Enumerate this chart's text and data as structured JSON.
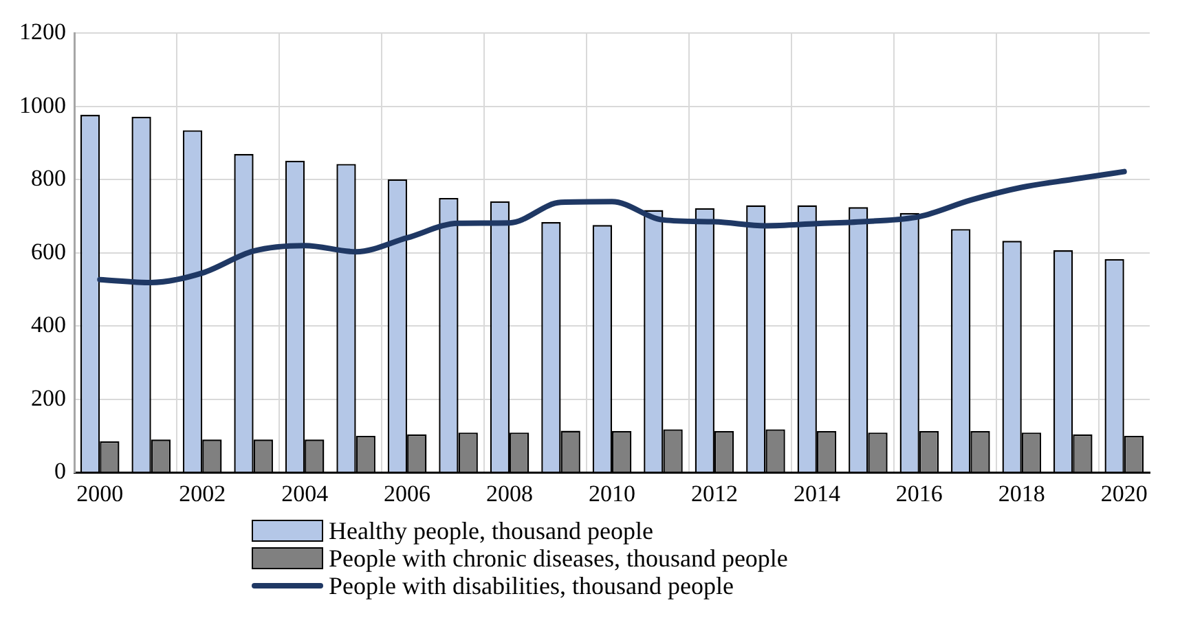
{
  "chart_data": {
    "type": "bar",
    "categories": [
      "2000",
      null,
      "2002",
      null,
      "2004",
      null,
      "2006",
      null,
      "2008",
      null,
      "2010",
      null,
      "2012",
      null,
      "2014",
      null,
      "2016",
      null,
      "2018",
      null,
      "2020"
    ],
    "series": [
      {
        "name": "Healthy people, thousand people",
        "color": "#b4c7e7",
        "values": [
          977,
          972,
          935,
          870,
          852,
          843,
          801,
          750,
          741,
          684,
          676,
          717,
          722,
          730,
          730,
          725,
          709,
          665,
          633,
          607,
          583
        ]
      },
      {
        "name": "People with chronic diseases, thousand people",
        "color": "#808080",
        "values": [
          85,
          90,
          90,
          90,
          90,
          100,
          104,
          109,
          109,
          114,
          113,
          118,
          113,
          118,
          113,
          109,
          113,
          113,
          109,
          104,
          100
        ]
      },
      {
        "name": "People with disabilities, thousand people",
        "type": "line",
        "color": "#1f3864",
        "values": [
          527,
          519,
          545,
          605,
          620,
          603,
          641,
          681,
          682,
          738,
          740,
          690,
          685,
          674,
          680,
          686,
          699,
          744,
          779,
          801,
          822
        ]
      }
    ],
    "ylim": [
      0,
      1200
    ],
    "yticks": [
      0,
      200,
      400,
      600,
      800,
      1000,
      1200
    ],
    "grid": true,
    "legend": "bottom",
    "marker": "none",
    "line_style": "solid"
  }
}
